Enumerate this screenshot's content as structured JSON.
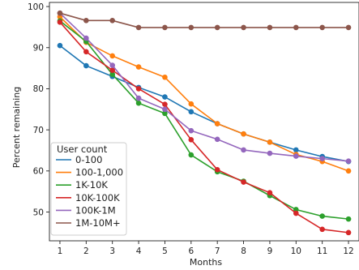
{
  "chart_data": {
    "type": "line",
    "title": "",
    "xlabel": "Months",
    "ylabel": "Percent remaining",
    "x": [
      1,
      2,
      3,
      4,
      5,
      6,
      7,
      8,
      9,
      10,
      11,
      12
    ],
    "xlim": [
      0.6,
      12.4
    ],
    "ylim": [
      43,
      101
    ],
    "yticks": [
      50,
      60,
      70,
      80,
      90,
      100
    ],
    "grid": false,
    "legend": {
      "title": "User count",
      "placement": "lower-left"
    },
    "series": [
      {
        "name": "0-100",
        "color": "#1f77b4",
        "values": [
          90.5,
          85.6,
          83.0,
          80.3,
          78.0,
          74.4,
          71.5,
          69.0,
          67.0,
          65.1,
          63.5,
          62.3
        ]
      },
      {
        "name": "100-1,000",
        "color": "#ff7f0e",
        "values": [
          97.5,
          91.3,
          88.0,
          85.3,
          82.8,
          76.3,
          71.5,
          69.0,
          67.0,
          64.0,
          62.3,
          60.0
        ]
      },
      {
        "name": "1K-10K",
        "color": "#2ca02c",
        "values": [
          96.5,
          91.5,
          83.5,
          76.5,
          74.0,
          63.9,
          59.8,
          57.5,
          54.0,
          50.6,
          49.0,
          48.3
        ]
      },
      {
        "name": "10K-100K",
        "color": "#d62728",
        "values": [
          96.2,
          89.0,
          84.5,
          80.0,
          76.2,
          67.6,
          60.3,
          57.3,
          54.7,
          49.7,
          45.8,
          45.0
        ]
      },
      {
        "name": "100K-1M",
        "color": "#9467bd",
        "values": [
          98.4,
          92.3,
          85.7,
          77.7,
          75.0,
          69.8,
          67.7,
          65.1,
          64.3,
          63.6,
          63.0,
          62.4
        ]
      },
      {
        "name": "1M-10M+",
        "color": "#8c564b",
        "values": [
          98.4,
          96.6,
          96.6,
          94.9,
          94.9,
          94.9,
          94.9,
          94.9,
          94.9,
          94.9,
          94.9,
          94.9
        ]
      }
    ]
  }
}
